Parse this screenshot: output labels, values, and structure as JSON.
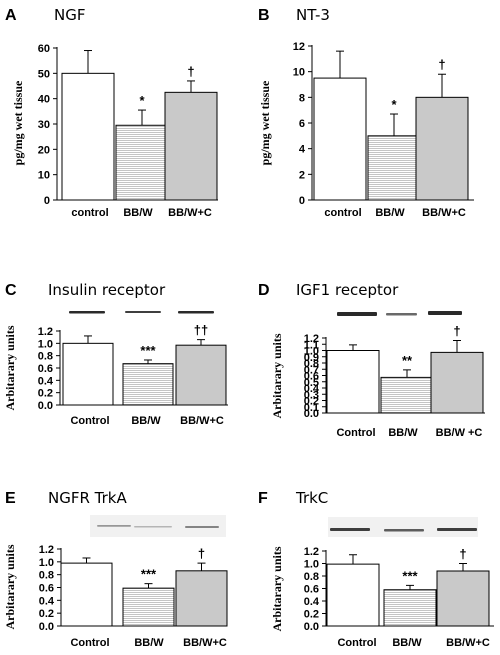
{
  "colors": {
    "control": "#ffffff",
    "bbw": "#e2e2e2",
    "bbwc": "#c9c9c9",
    "stroke": "#000000",
    "blot": "#2a2a2a"
  },
  "chart_data": [
    {
      "id": "A",
      "letter": "A",
      "title": "NGF",
      "type": "bar",
      "categories": [
        "control",
        "BB/W",
        "BB/W+C"
      ],
      "values": [
        50,
        29.5,
        42.5
      ],
      "errors": [
        9,
        6,
        4.5
      ],
      "sig": [
        "",
        "*",
        "†"
      ],
      "ylabel": "pg/mg wet tissue",
      "ylim": [
        0,
        60
      ],
      "yticks": [
        "0",
        "10",
        "20",
        "30",
        "40",
        "50",
        "60"
      ],
      "blot": false
    },
    {
      "id": "B",
      "letter": "B",
      "title": "NT-3",
      "type": "bar",
      "categories": [
        "control",
        "BB/W",
        "BB/W+C"
      ],
      "values": [
        9.5,
        5,
        8
      ],
      "errors": [
        2.1,
        1.7,
        1.8
      ],
      "sig": [
        "",
        "*",
        "†"
      ],
      "ylabel": "pg/mg wet tissue",
      "ylim": [
        0,
        12
      ],
      "yticks": [
        "0",
        "2",
        "4",
        "6",
        "8",
        "10",
        "12"
      ],
      "blot": false
    },
    {
      "id": "C",
      "letter": "C",
      "title": "Insulin receptor",
      "type": "bar",
      "categories": [
        "Control",
        "BB/W",
        "BB/W+C"
      ],
      "values": [
        1.0,
        0.67,
        0.97
      ],
      "errors": [
        0.12,
        0.06,
        0.09
      ],
      "sig": [
        "",
        "***",
        "††"
      ],
      "ylabel": "Arbitarary units",
      "ylim": [
        0,
        1.2
      ],
      "yticks": [
        "0.0",
        "0.2",
        "0.4",
        "0.6",
        "0.8",
        "1.0",
        "1.2"
      ],
      "blot": true
    },
    {
      "id": "D",
      "letter": "D",
      "title": "IGF1 receptor",
      "type": "bar",
      "categories": [
        "Control",
        "BB/W",
        "BB/W +C"
      ],
      "values": [
        1.0,
        0.57,
        0.97
      ],
      "errors": [
        0.09,
        0.12,
        0.19
      ],
      "sig": [
        "",
        "**",
        "†"
      ],
      "ylabel": "Arbitarary units",
      "ylim": [
        0,
        1.2
      ],
      "yticks": [
        "0.0",
        "0.1",
        "0.2",
        "0.3",
        "0.4",
        "0.5",
        "0.6",
        "0.7",
        "0.8",
        "0.9",
        "1.0",
        "1.1",
        "1.2"
      ],
      "blot": true
    },
    {
      "id": "E",
      "letter": "E",
      "title": "NGFR TrkA",
      "type": "bar",
      "categories": [
        "Control",
        "BB/W",
        "BB/W+C"
      ],
      "values": [
        0.98,
        0.59,
        0.86
      ],
      "errors": [
        0.08,
        0.07,
        0.12
      ],
      "sig": [
        "",
        "***",
        "†"
      ],
      "ylabel": "Arbitarary units",
      "ylim": [
        0,
        1.2
      ],
      "yticks": [
        "0.0",
        "0.2",
        "0.4",
        "0.6",
        "0.8",
        "1.0",
        "1.2"
      ],
      "blot": true
    },
    {
      "id": "F",
      "letter": "F",
      "title": "TrkC",
      "type": "bar",
      "categories": [
        "Control",
        "BB/W",
        "BB/W+C"
      ],
      "values": [
        0.99,
        0.58,
        0.88
      ],
      "errors": [
        0.15,
        0.07,
        0.12
      ],
      "sig": [
        "",
        "***",
        "†"
      ],
      "ylabel": "Arbitarary units",
      "ylim": [
        0,
        1.2
      ],
      "yticks": [
        "0.0",
        "0.2",
        "0.4",
        "0.6",
        "0.8",
        "1.0",
        "1.2"
      ],
      "blot": true
    }
  ]
}
